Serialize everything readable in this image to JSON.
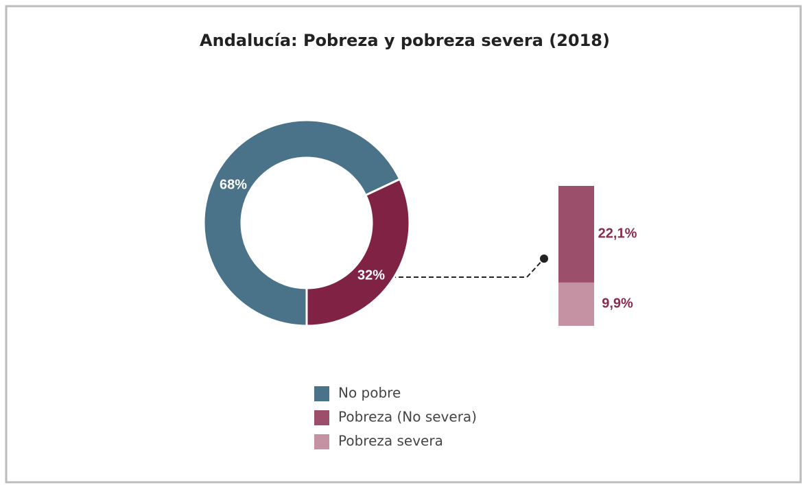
{
  "chart_data": [
    {
      "type": "donut",
      "title": "Andalucía: Pobreza y pobreza severa (2018)",
      "values": [
        68,
        32
      ],
      "value_labels": [
        "68%",
        "32%"
      ],
      "colors": [
        "#4a7389",
        "#7f2244"
      ],
      "legend": [
        {
          "name": "No pobre",
          "color": "#4a7389"
        },
        {
          "name": "Pobreza (No severa)",
          "color": "#9b4f6a"
        },
        {
          "name": "Pobreza severa",
          "color": "#c492a3"
        }
      ]
    },
    {
      "type": "stackedbar",
      "values": [
        22.1,
        9.9
      ],
      "value_labels": [
        "22,1%",
        "9,9%"
      ],
      "colors": [
        "#9b4f6a",
        "#c492a3"
      ]
    }
  ]
}
